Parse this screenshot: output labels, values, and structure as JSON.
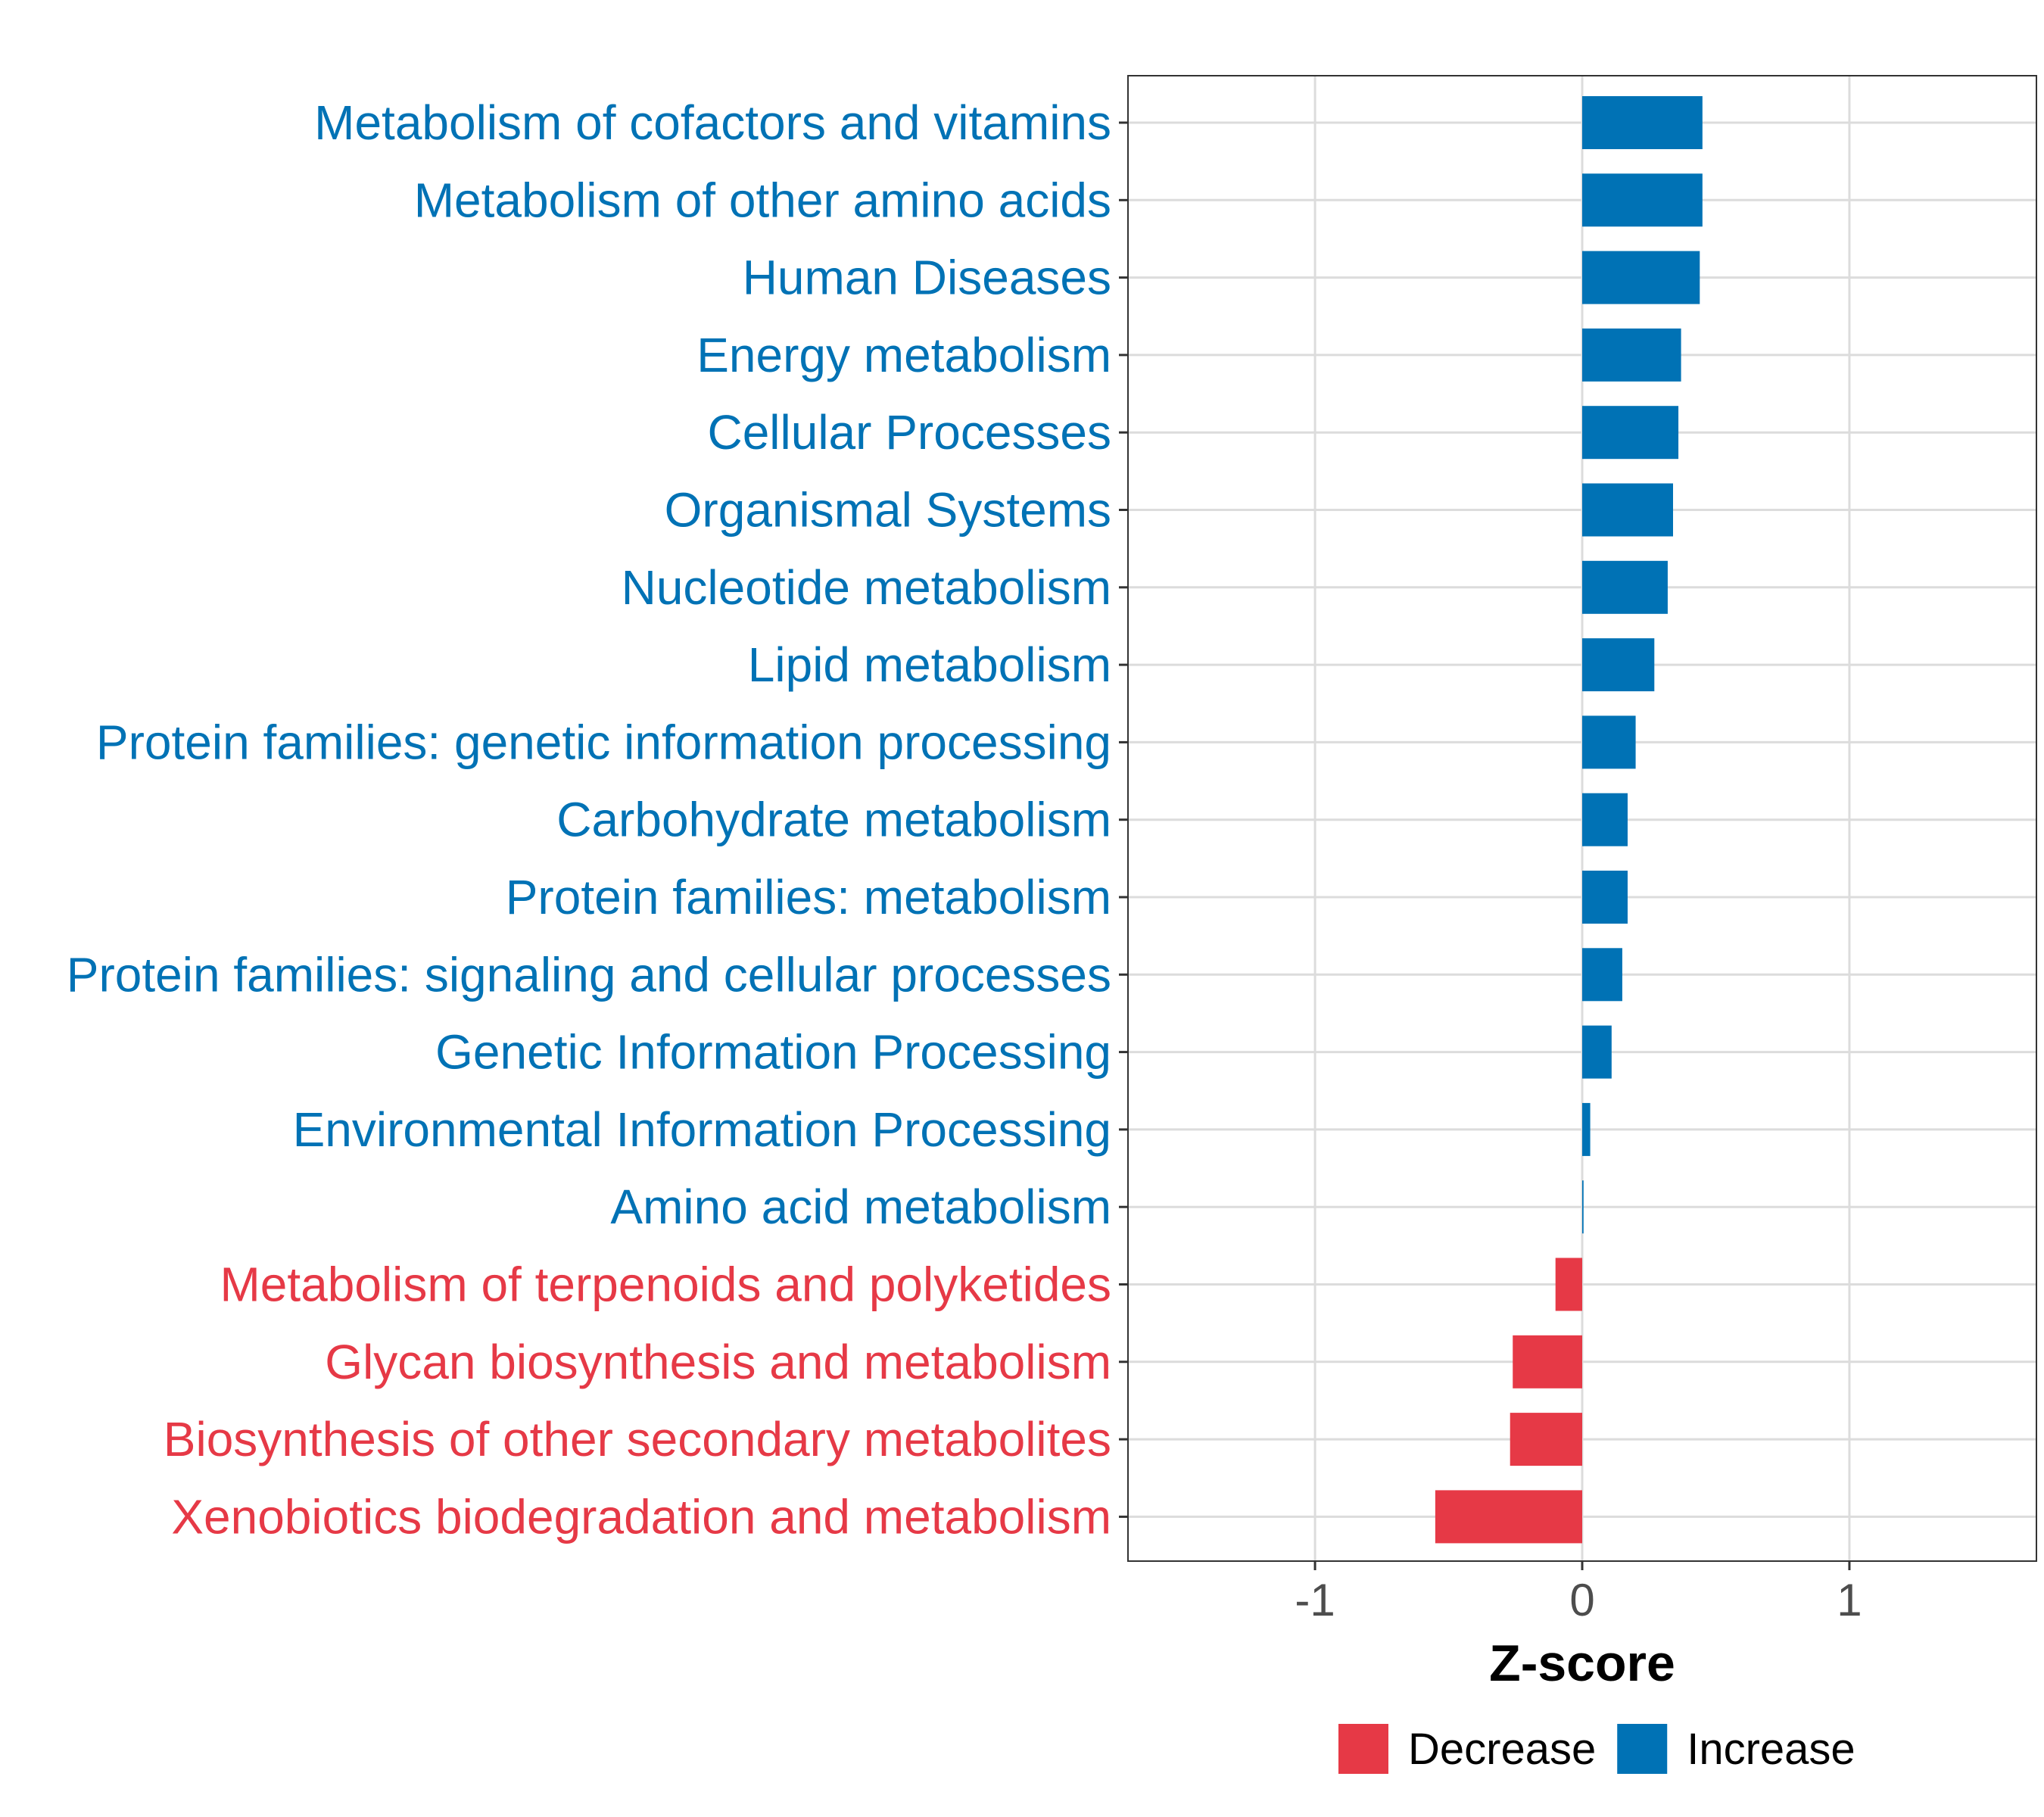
{
  "chart_data": {
    "type": "bar",
    "orientation": "horizontal",
    "xlabel": "Z-score",
    "ylabel": "",
    "xlim": [
      -1.7,
      1.7
    ],
    "xticks": [
      -1,
      0,
      1
    ],
    "xtick_labels": [
      "-1",
      "0",
      "1"
    ],
    "grid": true,
    "categories": [
      "Metabolism of cofactors and vitamins",
      "Metabolism of other amino acids",
      "Human Diseases",
      "Energy metabolism",
      "Cellular Processes",
      "Organismal Systems",
      "Nucleotide metabolism",
      "Lipid metabolism",
      "Protein families: genetic information processing",
      "Carbohydrate metabolism",
      "Protein families: metabolism",
      "Protein families: signaling and cellular processes",
      "Genetic Information Processing",
      "Environmental Information Processing",
      "Amino acid metabolism",
      "Metabolism of terpenoids and polyketides",
      "Glycan biosynthesis and metabolism",
      "Biosynthesis of other secondary metabolites",
      "Xenobiotics biodegradation and metabolism"
    ],
    "values": [
      0.45,
      0.45,
      0.44,
      0.37,
      0.36,
      0.34,
      0.32,
      0.27,
      0.2,
      0.17,
      0.17,
      0.15,
      0.11,
      0.03,
      0.005,
      -0.1,
      -0.26,
      -0.27,
      -0.55
    ],
    "groups": [
      "Increase",
      "Increase",
      "Increase",
      "Increase",
      "Increase",
      "Increase",
      "Increase",
      "Increase",
      "Increase",
      "Increase",
      "Increase",
      "Increase",
      "Increase",
      "Increase",
      "Increase",
      "Decrease",
      "Decrease",
      "Decrease",
      "Decrease"
    ],
    "legend": {
      "position": "bottom",
      "entries": [
        {
          "label": "Decrease",
          "color": "#E63946"
        },
        {
          "label": "Increase",
          "color": "#0072B5"
        }
      ]
    }
  }
}
